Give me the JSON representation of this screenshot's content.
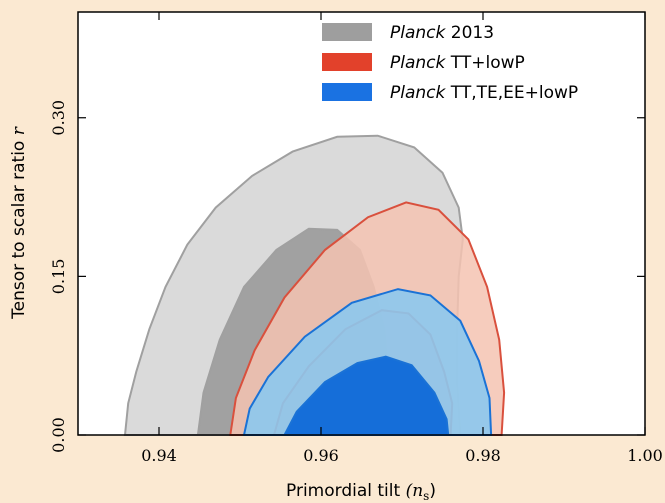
{
  "chart_data": {
    "type": "contour",
    "xlabel": "Primordial tilt",
    "xlabel_math": "(n",
    "xlabel_math_sub": "s",
    "xlabel_math_close": ")",
    "ylabel": "Tensor to scalar ratio",
    "ylabel_math": "r",
    "xlim": [
      0.93,
      1.0
    ],
    "ylim": [
      0.0,
      0.4
    ],
    "xticks": [
      0.94,
      0.96,
      0.98,
      1.0
    ],
    "xtick_labels": [
      "0.94",
      "0.96",
      "0.98",
      "1.00"
    ],
    "yticks": [
      0.0,
      0.15,
      0.3
    ],
    "ytick_labels": [
      "0.00",
      "0.15",
      "0.30"
    ],
    "legend_position": "top-right",
    "grid": false,
    "series": [
      {
        "name_italic": "Planck",
        "name_rest": " 2013",
        "color_outer": "#d6d6d6",
        "color_inner": "#9e9e9e",
        "stroke": "#a0a0a0",
        "legend_color": "#9e9e9e",
        "outer_95": [
          [
            0.9358,
            0.0
          ],
          [
            0.9362,
            0.03
          ],
          [
            0.9372,
            0.06
          ],
          [
            0.9388,
            0.1
          ],
          [
            0.9408,
            0.14
          ],
          [
            0.9435,
            0.18
          ],
          [
            0.947,
            0.215
          ],
          [
            0.9515,
            0.245
          ],
          [
            0.9565,
            0.268
          ],
          [
            0.962,
            0.282
          ],
          [
            0.967,
            0.283
          ],
          [
            0.9715,
            0.272
          ],
          [
            0.975,
            0.248
          ],
          [
            0.977,
            0.215
          ],
          [
            0.9775,
            0.185
          ],
          [
            0.977,
            0.15
          ],
          [
            0.9768,
            0.1
          ],
          [
            0.9768,
            0.05
          ],
          [
            0.9772,
            0.0
          ]
        ],
        "inner_68": [
          [
            0.9448,
            0.0
          ],
          [
            0.9455,
            0.04
          ],
          [
            0.9475,
            0.09
          ],
          [
            0.9505,
            0.14
          ],
          [
            0.9545,
            0.175
          ],
          [
            0.9585,
            0.195
          ],
          [
            0.962,
            0.194
          ],
          [
            0.9648,
            0.175
          ],
          [
            0.9665,
            0.14
          ],
          [
            0.9678,
            0.1
          ],
          [
            0.9683,
            0.05
          ],
          [
            0.9682,
            0.0
          ]
        ]
      },
      {
        "name_italic": "Planck",
        "name_rest": " TT+lowP",
        "color_outer": "#f4c3b2",
        "color_inner": "#eb9f88",
        "stroke": "#d9503d",
        "legend_color": "#e2412b",
        "outer_95": [
          [
            0.9488,
            0.0
          ],
          [
            0.9495,
            0.035
          ],
          [
            0.9518,
            0.08
          ],
          [
            0.9555,
            0.13
          ],
          [
            0.9605,
            0.175
          ],
          [
            0.9658,
            0.206
          ],
          [
            0.9705,
            0.22
          ],
          [
            0.9745,
            0.213
          ],
          [
            0.9782,
            0.185
          ],
          [
            0.9805,
            0.14
          ],
          [
            0.982,
            0.09
          ],
          [
            0.9826,
            0.04
          ],
          [
            0.9823,
            0.0
          ]
        ],
        "inner_68": [
          [
            0.9542,
            0.0
          ],
          [
            0.9553,
            0.03
          ],
          [
            0.9585,
            0.065
          ],
          [
            0.963,
            0.1
          ],
          [
            0.9675,
            0.118
          ],
          [
            0.9708,
            0.115
          ],
          [
            0.9735,
            0.095
          ],
          [
            0.9752,
            0.06
          ],
          [
            0.9762,
            0.03
          ],
          [
            0.976,
            0.0
          ]
        ]
      },
      {
        "name_italic": "Planck",
        "name_rest": " TT,TE,EE+lowP",
        "color_outer": "#8cc8ee",
        "color_inner": "#0e69d8",
        "stroke": "#1a72d6",
        "legend_color": "#1a72e2",
        "outer_95": [
          [
            0.9505,
            0.0
          ],
          [
            0.9512,
            0.025
          ],
          [
            0.9535,
            0.055
          ],
          [
            0.958,
            0.093
          ],
          [
            0.9638,
            0.125
          ],
          [
            0.9695,
            0.138
          ],
          [
            0.9735,
            0.132
          ],
          [
            0.9772,
            0.108
          ],
          [
            0.9795,
            0.07
          ],
          [
            0.9808,
            0.035
          ],
          [
            0.981,
            0.0
          ]
        ],
        "inner_68": [
          [
            0.9555,
            0.0
          ],
          [
            0.957,
            0.022
          ],
          [
            0.9605,
            0.05
          ],
          [
            0.9645,
            0.068
          ],
          [
            0.968,
            0.074
          ],
          [
            0.9712,
            0.066
          ],
          [
            0.974,
            0.04
          ],
          [
            0.9755,
            0.015
          ],
          [
            0.9757,
            0.0
          ]
        ]
      }
    ]
  }
}
